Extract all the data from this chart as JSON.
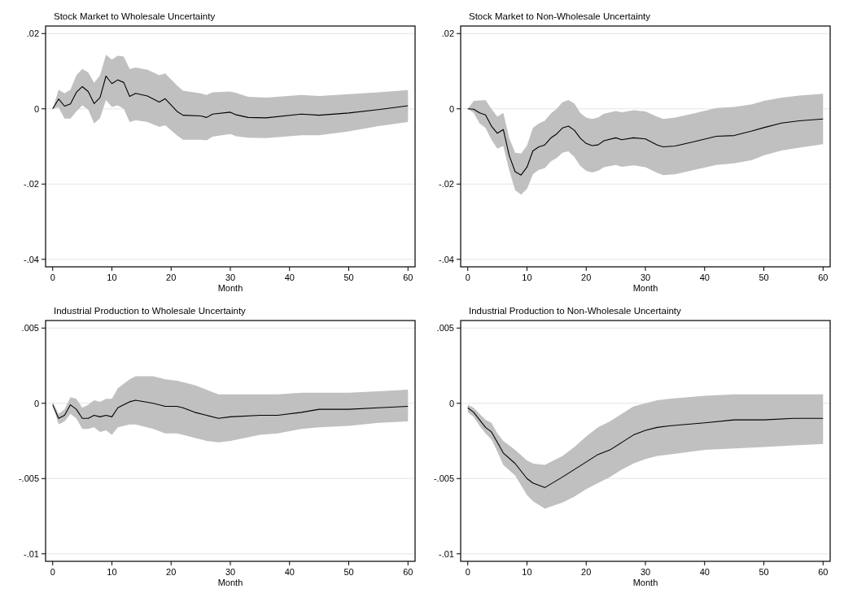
{
  "chart_data": [
    {
      "type": "line",
      "title": "Stock Market to Wholesale Uncertainty",
      "xlabel": "Month",
      "xlim": [
        -1.2,
        61.2
      ],
      "xticks": [
        0,
        10,
        20,
        30,
        40,
        50,
        60
      ],
      "ylim": [
        -0.042,
        0.022
      ],
      "yticks": [
        {
          "value": 0.02,
          "label": ".02"
        },
        {
          "value": 0,
          "label": "0"
        },
        {
          "value": -0.02,
          "label": "-.02"
        },
        {
          "value": -0.04,
          "label": "-.04"
        }
      ],
      "grid": "y",
      "series": [
        {
          "color": "#000000",
          "x": [
            0,
            1,
            2,
            3,
            4,
            5,
            6,
            7,
            8,
            9,
            10,
            11,
            12,
            13,
            14,
            16,
            18,
            19,
            21,
            22,
            25,
            26,
            27,
            30,
            31,
            33,
            36,
            42,
            45,
            50,
            55,
            60
          ],
          "values": [
            0,
            0.0026,
            0.0007,
            0.0013,
            0.0044,
            0.0059,
            0.0046,
            0.0014,
            0.003,
            0.0087,
            0.0067,
            0.0077,
            0.007,
            0.0033,
            0.0041,
            0.0034,
            0.0018,
            0.0027,
            -0.0007,
            -0.0017,
            -0.0019,
            -0.0023,
            -0.0014,
            -0.0009,
            -0.0016,
            -0.0023,
            -0.0024,
            -0.0014,
            -0.0017,
            -0.0011,
            -0.0002,
            0.0008
          ],
          "lower": [
            0,
            0.0004,
            -0.0026,
            -0.0026,
            -0.0007,
            0.0009,
            -0.0002,
            -0.0039,
            -0.0025,
            0.0024,
            0.0005,
            0.0009,
            0,
            -0.0035,
            -0.003,
            -0.0035,
            -0.0048,
            -0.0044,
            -0.0071,
            -0.0082,
            -0.0082,
            -0.0084,
            -0.0074,
            -0.0067,
            -0.0073,
            -0.0077,
            -0.0078,
            -0.007,
            -0.007,
            -0.006,
            -0.0046,
            -0.0035
          ],
          "upper": [
            0,
            0.0051,
            0.0041,
            0.0051,
            0.0089,
            0.0106,
            0.0097,
            0.0069,
            0.0089,
            0.0144,
            0.0131,
            0.0141,
            0.0139,
            0.0106,
            0.011,
            0.0104,
            0.0089,
            0.0094,
            0.0062,
            0.0048,
            0.0041,
            0.0037,
            0.0044,
            0.0046,
            0.0042,
            0.0032,
            0.003,
            0.0037,
            0.0034,
            0.0039,
            0.0044,
            0.005
          ]
        }
      ]
    },
    {
      "type": "line",
      "title": "Stock Market to Non-Wholesale Uncertainty",
      "xlabel": "Month",
      "xlim": [
        -1.2,
        61.2
      ],
      "xticks": [
        0,
        10,
        20,
        30,
        40,
        50,
        60
      ],
      "ylim": [
        -0.042,
        0.022
      ],
      "yticks": [
        {
          "value": 0.02,
          "label": ".02"
        },
        {
          "value": 0,
          "label": "0"
        },
        {
          "value": -0.02,
          "label": "-.02"
        },
        {
          "value": -0.04,
          "label": "-.04"
        }
      ],
      "grid": "y",
      "series": [
        {
          "color": "#000000",
          "x": [
            0,
            1,
            2,
            3,
            4,
            5,
            6,
            7,
            8,
            9,
            10,
            11,
            12,
            13,
            14,
            15,
            16,
            17,
            18,
            19,
            20,
            21,
            22,
            23,
            25,
            26,
            28,
            30,
            32,
            33,
            35,
            38,
            42,
            45,
            48,
            50,
            53,
            56,
            60
          ],
          "values": [
            0,
            -0.0001,
            -0.0011,
            -0.0016,
            -0.0046,
            -0.0065,
            -0.0055,
            -0.0124,
            -0.0167,
            -0.0176,
            -0.0155,
            -0.0112,
            -0.0101,
            -0.0096,
            -0.0078,
            -0.0067,
            -0.0051,
            -0.0046,
            -0.0057,
            -0.0078,
            -0.0092,
            -0.0098,
            -0.0096,
            -0.0085,
            -0.0077,
            -0.0082,
            -0.0077,
            -0.008,
            -0.0096,
            -0.0101,
            -0.0099,
            -0.0088,
            -0.0073,
            -0.0071,
            -0.0059,
            -0.005,
            -0.0038,
            -0.0032,
            -0.0027
          ],
          "lower": [
            0,
            -0.0011,
            -0.0039,
            -0.0051,
            -0.0082,
            -0.0106,
            -0.0099,
            -0.0163,
            -0.0216,
            -0.0228,
            -0.0213,
            -0.0174,
            -0.0162,
            -0.0158,
            -0.014,
            -0.0131,
            -0.0117,
            -0.0113,
            -0.0128,
            -0.0152,
            -0.0165,
            -0.0169,
            -0.0165,
            -0.0155,
            -0.0149,
            -0.0154,
            -0.015,
            -0.0155,
            -0.017,
            -0.0176,
            -0.0174,
            -0.0163,
            -0.0149,
            -0.0145,
            -0.0136,
            -0.0124,
            -0.0111,
            -0.0103,
            -0.0094
          ],
          "upper": [
            0,
            0.0021,
            0.0022,
            0.0023,
            0,
            -0.0021,
            -0.0011,
            -0.0078,
            -0.0117,
            -0.0119,
            -0.0098,
            -0.0051,
            -0.0039,
            -0.0032,
            -0.0013,
            0,
            0.0018,
            0.0023,
            0.0014,
            -0.0011,
            -0.0023,
            -0.0027,
            -0.0023,
            -0.0013,
            -0.0006,
            -0.0009,
            -0.0004,
            -0.0007,
            -0.0021,
            -0.0027,
            -0.0023,
            -0.0013,
            0.0002,
            0.0005,
            0.0012,
            0.0021,
            0.003,
            0.0035,
            0.004
          ]
        }
      ]
    },
    {
      "type": "line",
      "title": "Industrial Production to Wholesale Uncertainty",
      "xlabel": "Month",
      "xlim": [
        -1.2,
        61.2
      ],
      "xticks": [
        0,
        10,
        20,
        30,
        40,
        50,
        60
      ],
      "ylim": [
        -0.0105,
        0.0055
      ],
      "yticks": [
        {
          "value": 0.005,
          "label": ".005"
        },
        {
          "value": 0,
          "label": "0"
        },
        {
          "value": -0.005,
          "label": "-.005"
        },
        {
          "value": -0.01,
          "label": "-.01"
        }
      ],
      "grid": "y",
      "series": [
        {
          "color": "#000000",
          "x": [
            0,
            1,
            2,
            3,
            4,
            5,
            6,
            7,
            8,
            9,
            10,
            11,
            12,
            13,
            14,
            17,
            19,
            21,
            22,
            24,
            26,
            28,
            30,
            35,
            38,
            42,
            45,
            50,
            55,
            60
          ],
          "values": [
            -0.0001,
            -0.001,
            -0.0008,
            -0.0001,
            -0.0004,
            -0.001,
            -0.001,
            -0.0008,
            -0.0009,
            -0.0008,
            -0.0009,
            -0.0003,
            -0.0001,
            0.0001,
            0.0002,
            0,
            -0.0002,
            -0.0002,
            -0.0003,
            -0.0006,
            -0.0008,
            -0.001,
            -0.0009,
            -0.0008,
            -0.0008,
            -0.0006,
            -0.0004,
            -0.0004,
            -0.0003,
            -0.0002
          ],
          "lower": [
            -0.0001,
            -0.0014,
            -0.0012,
            -0.0007,
            -0.001,
            -0.0017,
            -0.0017,
            -0.0016,
            -0.0019,
            -0.0018,
            -0.0021,
            -0.0016,
            -0.0015,
            -0.0014,
            -0.0014,
            -0.0017,
            -0.002,
            -0.002,
            -0.0021,
            -0.0023,
            -0.0025,
            -0.0026,
            -0.0025,
            -0.0021,
            -0.002,
            -0.0017,
            -0.0016,
            -0.0015,
            -0.0013,
            -0.0012
          ],
          "upper": [
            0.0001,
            -0.0007,
            -0.0004,
            0.0004,
            0.0003,
            -0.0003,
            -0.0001,
            0.0002,
            0.0001,
            0.0003,
            0.0003,
            0.001,
            0.0013,
            0.0016,
            0.0018,
            0.0018,
            0.0016,
            0.0015,
            0.0014,
            0.0012,
            0.0009,
            0.0006,
            0.0006,
            0.0006,
            0.0006,
            0.0007,
            0.0007,
            0.0007,
            0.0008,
            0.0009
          ]
        }
      ]
    },
    {
      "type": "line",
      "title": "Industrial Production to Non-Wholesale Uncertainty",
      "xlabel": "Month",
      "xlim": [
        -1.2,
        61.2
      ],
      "xticks": [
        0,
        10,
        20,
        30,
        40,
        50,
        60
      ],
      "ylim": [
        -0.0105,
        0.0055
      ],
      "yticks": [
        {
          "value": 0.005,
          "label": ".005"
        },
        {
          "value": 0,
          "label": "0"
        },
        {
          "value": -0.005,
          "label": "-.005"
        },
        {
          "value": -0.01,
          "label": "-.01"
        }
      ],
      "grid": "y",
      "series": [
        {
          "color": "#000000",
          "x": [
            0,
            1,
            2,
            3,
            4,
            5,
            6,
            8,
            10,
            11,
            13,
            16,
            18,
            20,
            22,
            24,
            26,
            28,
            30,
            32,
            34,
            40,
            45,
            50,
            55,
            60
          ],
          "values": [
            -0.0003,
            -0.0006,
            -0.0011,
            -0.0016,
            -0.0019,
            -0.0026,
            -0.0033,
            -0.004,
            -0.005,
            -0.0053,
            -0.0056,
            -0.0049,
            -0.0044,
            -0.0039,
            -0.0034,
            -0.0031,
            -0.0026,
            -0.0021,
            -0.0018,
            -0.0016,
            -0.0015,
            -0.0013,
            -0.0011,
            -0.0011,
            -0.001,
            -0.001
          ],
          "lower": [
            -0.0006,
            -0.0009,
            -0.0015,
            -0.002,
            -0.0024,
            -0.0032,
            -0.0041,
            -0.0048,
            -0.0061,
            -0.0065,
            -0.007,
            -0.0066,
            -0.0062,
            -0.0057,
            -0.0053,
            -0.0049,
            -0.0044,
            -0.004,
            -0.0037,
            -0.0035,
            -0.0034,
            -0.0031,
            -0.003,
            -0.0029,
            -0.0028,
            -0.0027
          ],
          "upper": [
            -0.0001,
            -0.0003,
            -0.0007,
            -0.0011,
            -0.0013,
            -0.002,
            -0.0025,
            -0.0031,
            -0.0038,
            -0.004,
            -0.0041,
            -0.0035,
            -0.0029,
            -0.0022,
            -0.0016,
            -0.0012,
            -0.0007,
            -0.0002,
            0,
            0.0002,
            0.0003,
            0.0005,
            0.0006,
            0.0006,
            0.0006,
            0.0006
          ]
        }
      ]
    }
  ]
}
